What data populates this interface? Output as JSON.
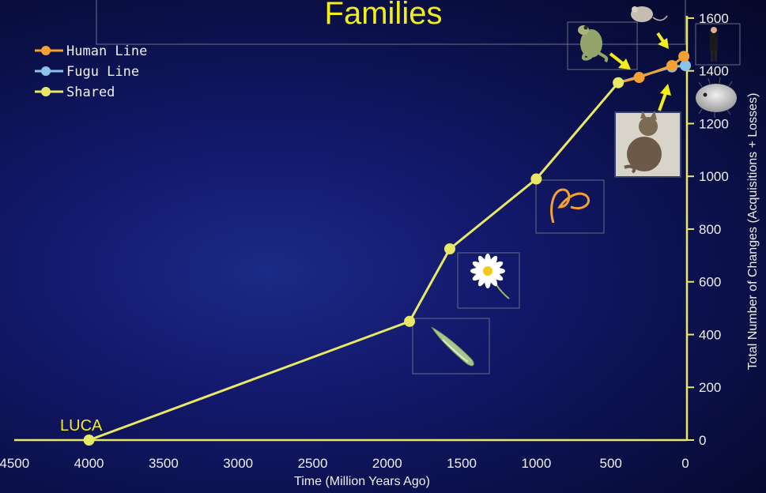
{
  "chart_data": {
    "type": "line",
    "title": "Families",
    "xlabel": "Time (Million Years Ago)",
    "ylabel": "Total Number of Changes (Acquisitions + Losses)",
    "xlim": [
      4500,
      0
    ],
    "ylim": [
      0,
      1600
    ],
    "x_ticks": [
      4500,
      4000,
      3500,
      3000,
      2500,
      2000,
      1500,
      1000,
      500,
      0
    ],
    "y_ticks": [
      0,
      200,
      400,
      600,
      800,
      1000,
      1200,
      1400,
      1600
    ],
    "legend_position": "top-left",
    "series": [
      {
        "name": "Shared",
        "color": "#e8e866",
        "points": [
          [
            4000,
            0
          ],
          [
            1850,
            450
          ],
          [
            1580,
            725
          ],
          [
            1000,
            990
          ],
          [
            450,
            1355
          ]
        ]
      },
      {
        "name": "Human Line",
        "color": "#f5a033",
        "points": [
          [
            450,
            1355
          ],
          [
            310,
            1375
          ],
          [
            90,
            1420
          ],
          [
            10,
            1455
          ]
        ]
      },
      {
        "name": "Fugu Line",
        "color": "#8cc4e8",
        "points": [
          [
            450,
            1355
          ],
          [
            90,
            1415
          ],
          [
            0,
            1420
          ]
        ]
      }
    ],
    "annotations": [
      {
        "text": "LUCA",
        "x": 4000,
        "y": 0
      }
    ],
    "illustration_icons": [
      "flatworm-icon",
      "daisy-icon",
      "roundworm-icon",
      "cat-icon",
      "frog-icon",
      "mouse-icon",
      "human-icon",
      "pufferfish-icon"
    ]
  }
}
